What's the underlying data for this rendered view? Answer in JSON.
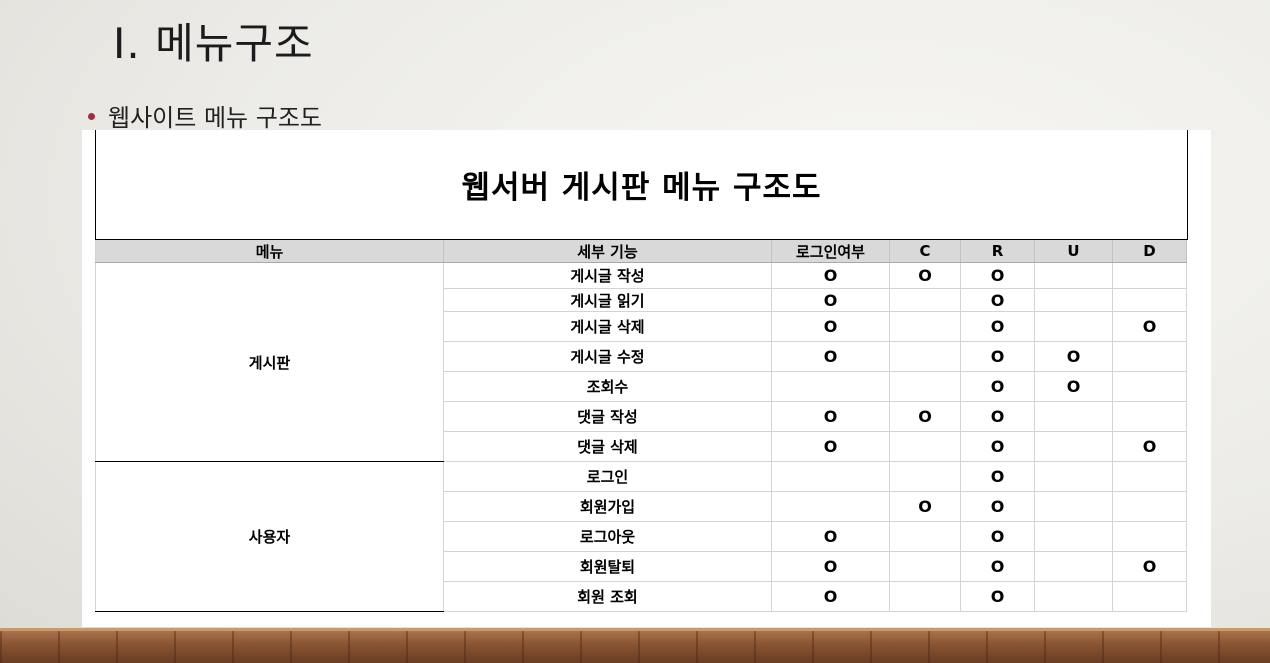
{
  "slide": {
    "title": "I. 메뉴구조",
    "bullet": "웹사이트 메뉴 구조도"
  },
  "colors": {
    "bullet": "#a52a4a",
    "header_fill": "#d9d9d9",
    "floor": "#8a5533"
  },
  "table": {
    "title": "웹서버 게시판 메뉴 구조도",
    "columns": [
      "메뉴",
      "세부 기능",
      "로그인여부",
      "C",
      "R",
      "U",
      "D"
    ],
    "groups": [
      {
        "menu": "게시판",
        "rows": [
          {
            "feature": "게시글 작성",
            "login": "O",
            "c": "O",
            "r": "O",
            "u": "",
            "d": ""
          },
          {
            "feature": "게시글 읽기",
            "login": "O",
            "c": "",
            "r": "O",
            "u": "",
            "d": ""
          },
          {
            "feature": "게시글 삭제",
            "login": "O",
            "c": "",
            "r": "O",
            "u": "",
            "d": "O"
          },
          {
            "feature": "게시글 수정",
            "login": "O",
            "c": "",
            "r": "O",
            "u": "O",
            "d": ""
          },
          {
            "feature": "조회수",
            "login": "",
            "c": "",
            "r": "O",
            "u": "O",
            "d": ""
          },
          {
            "feature": "댓글 작성",
            "login": "O",
            "c": "O",
            "r": "O",
            "u": "",
            "d": ""
          },
          {
            "feature": "댓글 삭제",
            "login": "O",
            "c": "",
            "r": "O",
            "u": "",
            "d": "O"
          }
        ]
      },
      {
        "menu": "사용자",
        "rows": [
          {
            "feature": "로그인",
            "login": "",
            "c": "",
            "r": "O",
            "u": "",
            "d": ""
          },
          {
            "feature": "회원가입",
            "login": "",
            "c": "O",
            "r": "O",
            "u": "",
            "d": ""
          },
          {
            "feature": "로그아웃",
            "login": "O",
            "c": "",
            "r": "O",
            "u": "",
            "d": ""
          },
          {
            "feature": "회원탈퇴",
            "login": "O",
            "c": "",
            "r": "O",
            "u": "",
            "d": "O"
          },
          {
            "feature": "회원 조회",
            "login": "O",
            "c": "",
            "r": "O",
            "u": "",
            "d": ""
          }
        ]
      }
    ]
  }
}
